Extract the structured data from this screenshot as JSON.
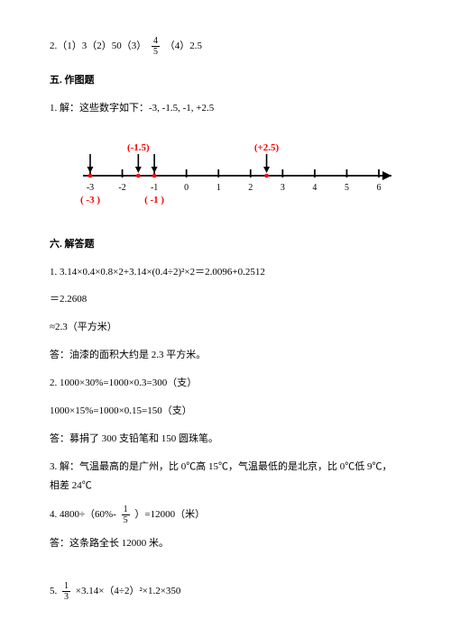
{
  "p2": {
    "text_a": "2.（1）3（2）50（3） ",
    "frac_num": "4",
    "frac_den": "5",
    "text_b": " （4）2.5"
  },
  "section5": {
    "title": "五. 作图题",
    "p1": "1. 解：这些数字如下：-3, -1.5, -1, +2.5"
  },
  "numberline": {
    "start": -3,
    "end": 6,
    "tick_step": 1,
    "axis_color": "#000000",
    "axis_width": 1.8,
    "tick_height": 7,
    "label_fontsize": 10,
    "label_color": "#000000",
    "points": [
      {
        "value": -3,
        "label": "( -3 )",
        "label_color": "#ff0000",
        "label_pos": "below",
        "arrow_from": "above"
      },
      {
        "value": -1.5,
        "label": "(-1.5)",
        "label_color": "#ff0000",
        "label_pos": "above",
        "arrow_from": "above"
      },
      {
        "value": -1,
        "label": "( -1 )",
        "label_color": "#ff0000",
        "label_pos": "below",
        "arrow_from": "above"
      },
      {
        "value": 2.5,
        "label": "(+2.5)",
        "label_color": "#ff0000",
        "label_pos": "above",
        "arrow_from": "above"
      }
    ],
    "point_marker_color": "#ff0000",
    "arrow_color": "#000000"
  },
  "section6": {
    "title": "六. 解答题",
    "p1": "1. 3.14×0.4×0.8×2+3.14×(0.4÷2)²×2＝2.0096+0.2512",
    "p2": "＝2.2608",
    "p3": "≈2.3（平方米）",
    "p4": "答：油漆的面积大约是 2.3 平方米。",
    "p5": "2. 1000×30%=1000×0.3=300（支）",
    "p6": "1000×15%=1000×0.15=150（支）",
    "p7": "答：募捐了 300 支铅笔和 150 圆珠笔。",
    "p8": "3. 解：气温最高的是广州，比 0℃高 15℃，气温最低的是北京，比 0℃低 9℃，相差 24℃",
    "p9a": "4. 4800÷（60%- ",
    "p9_frac_num": "1",
    "p9_frac_den": "5",
    "p9b": " ）=12000（米）",
    "p10": "答：这条路全长 12000 米。",
    "p11a": "5.  ",
    "p11_frac_num": "1",
    "p11_frac_den": "3",
    "p11b": " ×3.14×（4÷2）²×1.2×350"
  }
}
